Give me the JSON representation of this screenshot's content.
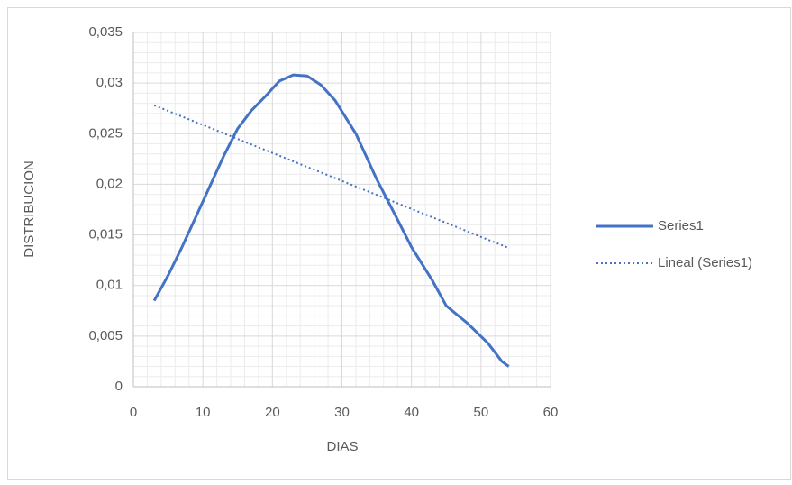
{
  "chart_data": {
    "type": "line",
    "x_label": "DIAS",
    "y_label": "DISTRIBUCION",
    "series": [
      {
        "name": "Series1",
        "color": "#4472c4",
        "line_style": "solid",
        "x": [
          3,
          5,
          7,
          9,
          11,
          13,
          15,
          17,
          19,
          21,
          23,
          25,
          27,
          29,
          32,
          35,
          38,
          40,
          43,
          45,
          48,
          51,
          53,
          54
        ],
        "values": [
          0.0085,
          0.011,
          0.0138,
          0.0168,
          0.0198,
          0.0228,
          0.0255,
          0.0273,
          0.0287,
          0.0302,
          0.0308,
          0.0307,
          0.0298,
          0.0283,
          0.025,
          0.0205,
          0.0165,
          0.0138,
          0.0105,
          0.008,
          0.0063,
          0.0043,
          0.0025,
          0.002
        ]
      },
      {
        "name": "Lineal (Series1)",
        "color": "#4472c4",
        "line_style": "dotted",
        "x": [
          3,
          54
        ],
        "values": [
          0.0278,
          0.0137
        ]
      }
    ],
    "xlim": [
      0,
      60
    ],
    "xticks": [
      0,
      10,
      20,
      30,
      40,
      50,
      60
    ],
    "ylim": [
      0,
      0.035
    ],
    "yticks": [
      0,
      {
        "value": 0.005,
        "label": "0,005"
      },
      {
        "value": 0.01,
        "label": "0,01"
      },
      {
        "value": 0.015,
        "label": "0,015"
      },
      {
        "value": 0.02,
        "label": "0,02"
      },
      {
        "value": 0.025,
        "label": "0,025"
      },
      {
        "value": 0.03,
        "label": "0,03"
      },
      {
        "value": 0.035,
        "label": "0,035"
      }
    ],
    "grid": true,
    "minor_grid": true,
    "legend": "right"
  }
}
